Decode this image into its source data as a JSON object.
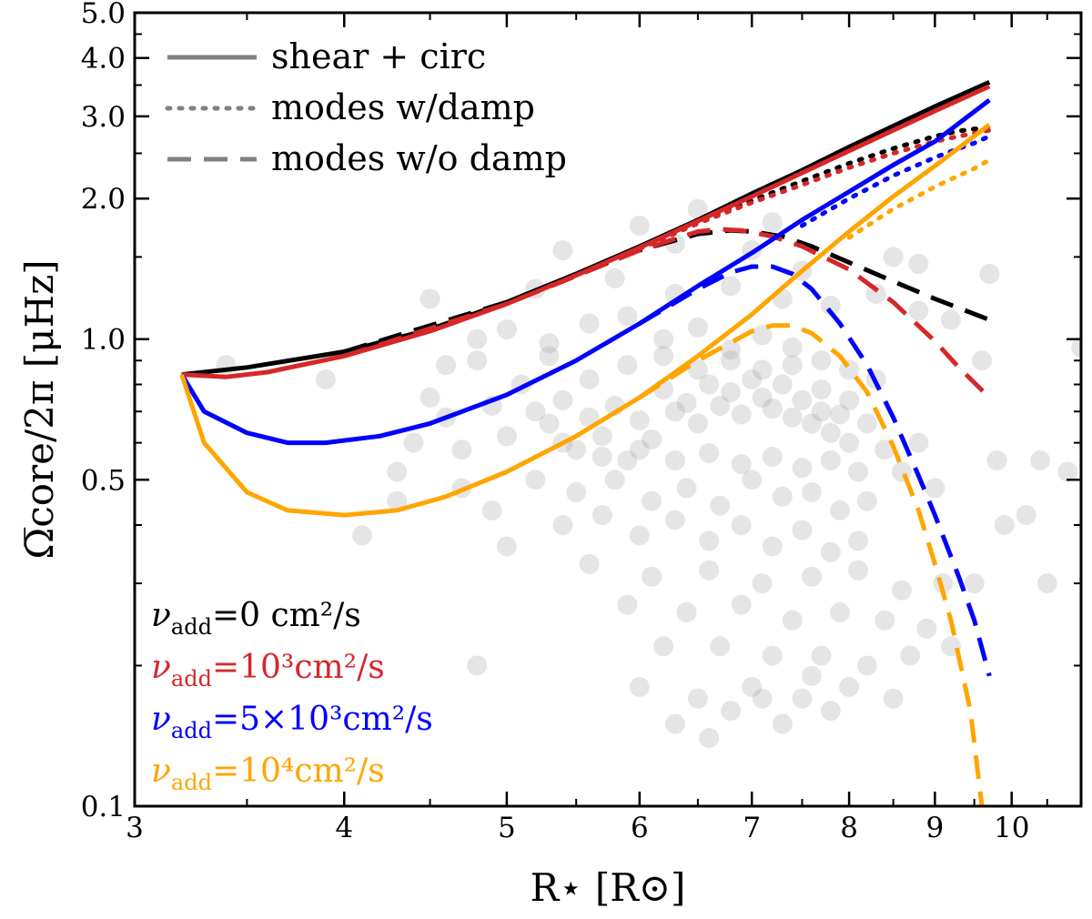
{
  "chart_data": {
    "type": "line",
    "title": "",
    "xlabel": "R⋆ [R⊙]",
    "ylabel": "Ω̅core/2π [μHz]",
    "xscale": "log",
    "yscale": "log",
    "xlim": [
      3.0,
      11.0
    ],
    "ylim": [
      0.1,
      5.0
    ],
    "xticks": [
      3,
      4,
      5,
      6,
      7,
      8,
      9,
      10
    ],
    "xtick_labels": [
      "3",
      "4",
      "5",
      "6",
      "7",
      "8",
      "9",
      "10"
    ],
    "yticks": [
      0.1,
      0.5,
      1.0,
      2.0,
      3.0,
      4.0,
      5.0
    ],
    "ytick_labels": [
      "0.1",
      "0.5",
      "1.0",
      "2.0",
      "3.0",
      "4.0",
      "5.0"
    ],
    "grid": false,
    "legend_style": {
      "position": "top-left",
      "entries": [
        {
          "label": "shear + circ",
          "dash": "solid"
        },
        {
          "label": "modes w/damp",
          "dash": "dotted"
        },
        {
          "label": "modes w/o damp",
          "dash": "dashed"
        }
      ]
    },
    "legend_models": {
      "position": "bottom-left",
      "entries": [
        {
          "prefix": "ν",
          "sub": "add",
          "text": "=0 cm²/s",
          "color": "#000000"
        },
        {
          "prefix": "ν",
          "sub": "add",
          "text": "=10³cm²/s",
          "color": "#d62728"
        },
        {
          "prefix": "ν",
          "sub": "add",
          "text": "=5×10³cm²/s",
          "color": "#0000ff"
        },
        {
          "prefix": "ν",
          "sub": "add",
          "text": "=10⁴cm²/s",
          "color": "#ffa500"
        }
      ]
    },
    "series": [
      {
        "color": "#000000",
        "dash": "solid",
        "x": [
          3.2,
          3.5,
          4.0,
          4.5,
          5.0,
          5.5,
          6.0,
          6.5,
          7.0,
          7.5,
          8.0,
          8.5,
          9.0,
          9.7
        ],
        "y": [
          0.84,
          0.87,
          0.94,
          1.05,
          1.2,
          1.38,
          1.58,
          1.8,
          2.05,
          2.3,
          2.58,
          2.86,
          3.15,
          3.55
        ]
      },
      {
        "color": "#000000",
        "dash": "dotted",
        "x": [
          6.0,
          6.5,
          7.0,
          7.5,
          8.0,
          8.5,
          9.0,
          9.3,
          9.5,
          9.7
        ],
        "y": [
          1.57,
          1.78,
          1.98,
          2.18,
          2.38,
          2.56,
          2.72,
          2.79,
          2.82,
          2.84
        ]
      },
      {
        "color": "#000000",
        "dash": "dashed",
        "x": [
          4.0,
          5.0,
          6.0,
          6.5,
          6.8,
          7.0,
          7.3,
          7.6,
          8.0,
          8.5,
          9.0,
          9.7
        ],
        "y": [
          0.94,
          1.2,
          1.55,
          1.68,
          1.71,
          1.7,
          1.66,
          1.58,
          1.46,
          1.33,
          1.22,
          1.1
        ]
      },
      {
        "color": "#d62728",
        "dash": "solid",
        "x": [
          3.2,
          3.4,
          3.6,
          4.0,
          4.5,
          5.0,
          5.5,
          6.0,
          6.5,
          7.0,
          7.5,
          8.0,
          8.5,
          9.0,
          9.7
        ],
        "y": [
          0.84,
          0.83,
          0.85,
          0.92,
          1.04,
          1.19,
          1.37,
          1.57,
          1.79,
          2.02,
          2.27,
          2.53,
          2.8,
          3.08,
          3.48
        ]
      },
      {
        "color": "#d62728",
        "dash": "dotted",
        "x": [
          6.0,
          6.5,
          7.0,
          7.5,
          8.0,
          8.5,
          9.0,
          9.3,
          9.5,
          9.7
        ],
        "y": [
          1.56,
          1.77,
          1.96,
          2.14,
          2.33,
          2.5,
          2.65,
          2.72,
          2.76,
          2.8
        ]
      },
      {
        "color": "#d62728",
        "dash": "dashed",
        "x": [
          4.0,
          5.0,
          6.0,
          6.5,
          6.7,
          6.9,
          7.2,
          7.5,
          8.0,
          8.5,
          9.0,
          9.3,
          9.7
        ],
        "y": [
          0.92,
          1.19,
          1.55,
          1.7,
          1.72,
          1.71,
          1.66,
          1.58,
          1.41,
          1.2,
          0.99,
          0.87,
          0.75
        ]
      },
      {
        "color": "#0000ff",
        "dash": "solid",
        "x": [
          3.2,
          3.3,
          3.5,
          3.7,
          3.9,
          4.2,
          4.5,
          5.0,
          5.5,
          6.0,
          6.5,
          7.0,
          7.5,
          8.0,
          8.5,
          9.0,
          9.7
        ],
        "y": [
          0.84,
          0.7,
          0.63,
          0.6,
          0.6,
          0.62,
          0.66,
          0.76,
          0.9,
          1.08,
          1.3,
          1.53,
          1.8,
          2.07,
          2.36,
          2.65,
          3.25
        ]
      },
      {
        "color": "#0000ff",
        "dash": "dotted",
        "x": [
          7.5,
          8.0,
          8.5,
          9.0,
          9.3,
          9.5,
          9.7
        ],
        "y": [
          1.75,
          2.0,
          2.24,
          2.45,
          2.56,
          2.63,
          2.72
        ]
      },
      {
        "color": "#0000ff",
        "dash": "dashed",
        "x": [
          6.0,
          6.5,
          6.8,
          7.0,
          7.2,
          7.4,
          7.6,
          7.9,
          8.2,
          8.5,
          8.8,
          9.0,
          9.3,
          9.5,
          9.7
        ],
        "y": [
          1.08,
          1.28,
          1.39,
          1.43,
          1.43,
          1.38,
          1.28,
          1.08,
          0.88,
          0.68,
          0.51,
          0.42,
          0.31,
          0.25,
          0.19
        ]
      },
      {
        "color": "#ffa500",
        "dash": "solid",
        "x": [
          3.2,
          3.3,
          3.5,
          3.7,
          4.0,
          4.3,
          4.6,
          5.0,
          5.5,
          6.0,
          6.5,
          7.0,
          7.5,
          8.0,
          8.5,
          9.0,
          9.7
        ],
        "y": [
          0.84,
          0.6,
          0.47,
          0.43,
          0.42,
          0.43,
          0.46,
          0.52,
          0.62,
          0.75,
          0.92,
          1.13,
          1.4,
          1.7,
          2.02,
          2.35,
          2.88
        ]
      },
      {
        "color": "#ffa500",
        "dash": "dotted",
        "x": [
          8.0,
          8.5,
          9.0,
          9.3,
          9.5,
          9.7
        ],
        "y": [
          1.65,
          1.9,
          2.12,
          2.24,
          2.32,
          2.42
        ]
      },
      {
        "color": "#ffa500",
        "dash": "dashed",
        "x": [
          6.0,
          6.5,
          7.0,
          7.2,
          7.4,
          7.6,
          7.9,
          8.2,
          8.5,
          8.8,
          9.0,
          9.2,
          9.45,
          9.6
        ],
        "y": [
          0.75,
          0.9,
          1.04,
          1.07,
          1.07,
          1.03,
          0.92,
          0.77,
          0.59,
          0.43,
          0.33,
          0.25,
          0.16,
          0.1
        ]
      }
    ],
    "scatter": {
      "color": "#999999",
      "opacity": 0.25,
      "points": [
        [
          3.4,
          0.88
        ],
        [
          3.9,
          0.82
        ],
        [
          4.3,
          0.52
        ],
        [
          4.4,
          0.6
        ],
        [
          4.5,
          0.75
        ],
        [
          4.6,
          0.68
        ],
        [
          4.7,
          0.58
        ],
        [
          4.8,
          0.9
        ],
        [
          4.9,
          0.72
        ],
        [
          5.0,
          0.62
        ],
        [
          5.1,
          0.8
        ],
        [
          5.2,
          0.7
        ],
        [
          5.3,
          0.66
        ],
        [
          5.4,
          0.74
        ],
        [
          5.5,
          0.58
        ],
        [
          5.6,
          0.68
        ],
        [
          5.7,
          0.62
        ],
        [
          5.8,
          0.72
        ],
        [
          5.9,
          0.55
        ],
        [
          6.0,
          0.67
        ],
        [
          6.1,
          0.61
        ],
        [
          6.2,
          0.78
        ],
        [
          6.3,
          0.7
        ],
        [
          6.4,
          0.73
        ],
        [
          6.5,
          0.66
        ],
        [
          6.6,
          0.8
        ],
        [
          6.7,
          0.72
        ],
        [
          6.8,
          0.77
        ],
        [
          6.9,
          0.69
        ],
        [
          7.0,
          0.82
        ],
        [
          7.1,
          0.75
        ],
        [
          7.2,
          0.71
        ],
        [
          7.3,
          0.8
        ],
        [
          7.4,
          0.68
        ],
        [
          7.5,
          0.74
        ],
        [
          7.6,
          0.66
        ],
        [
          7.7,
          0.7
        ],
        [
          7.8,
          0.63
        ],
        [
          7.9,
          0.69
        ],
        [
          8.0,
          0.6
        ],
        [
          8.2,
          0.66
        ],
        [
          8.4,
          0.58
        ],
        [
          8.6,
          0.52
        ],
        [
          8.8,
          0.6
        ],
        [
          9.0,
          0.48
        ],
        [
          4.6,
          0.88
        ],
        [
          4.8,
          1.0
        ],
        [
          5.0,
          1.05
        ],
        [
          5.3,
          0.98
        ],
        [
          5.6,
          1.08
        ],
        [
          5.9,
          1.12
        ],
        [
          6.2,
          1.0
        ],
        [
          6.5,
          1.06
        ],
        [
          6.8,
          0.95
        ],
        [
          7.1,
          1.02
        ],
        [
          7.4,
          0.96
        ],
        [
          7.7,
          0.9
        ],
        [
          8.0,
          0.86
        ],
        [
          8.3,
          0.82
        ],
        [
          5.2,
          0.5
        ],
        [
          5.5,
          0.47
        ],
        [
          5.8,
          0.5
        ],
        [
          6.1,
          0.45
        ],
        [
          6.4,
          0.48
        ],
        [
          6.7,
          0.44
        ],
        [
          7.0,
          0.5
        ],
        [
          7.3,
          0.46
        ],
        [
          7.6,
          0.47
        ],
        [
          7.9,
          0.43
        ],
        [
          8.2,
          0.45
        ],
        [
          5.4,
          0.4
        ],
        [
          5.7,
          0.42
        ],
        [
          6.0,
          0.38
        ],
        [
          6.3,
          0.41
        ],
        [
          6.6,
          0.37
        ],
        [
          6.9,
          0.4
        ],
        [
          7.2,
          0.36
        ],
        [
          7.5,
          0.39
        ],
        [
          7.8,
          0.35
        ],
        [
          8.1,
          0.37
        ],
        [
          4.5,
          1.22
        ],
        [
          5.2,
          1.28
        ],
        [
          5.8,
          1.35
        ],
        [
          6.3,
          1.25
        ],
        [
          6.8,
          1.3
        ],
        [
          7.3,
          1.22
        ],
        [
          7.8,
          1.18
        ],
        [
          8.3,
          1.25
        ],
        [
          8.8,
          1.15
        ],
        [
          9.2,
          1.1
        ],
        [
          5.4,
          1.55
        ],
        [
          6.3,
          1.6
        ],
        [
          7.0,
          1.55
        ],
        [
          7.5,
          1.4
        ],
        [
          8.8,
          1.45
        ],
        [
          9.7,
          1.38
        ],
        [
          6.0,
          1.75
        ],
        [
          6.5,
          1.9
        ],
        [
          7.2,
          1.78
        ],
        [
          8.5,
          1.5
        ],
        [
          5.6,
          0.33
        ],
        [
          6.1,
          0.31
        ],
        [
          6.6,
          0.32
        ],
        [
          7.1,
          0.3
        ],
        [
          7.6,
          0.31
        ],
        [
          8.1,
          0.32
        ],
        [
          8.6,
          0.29
        ],
        [
          9.1,
          0.3
        ],
        [
          5.9,
          0.27
        ],
        [
          6.4,
          0.26
        ],
        [
          6.9,
          0.27
        ],
        [
          7.4,
          0.25
        ],
        [
          7.9,
          0.26
        ],
        [
          8.4,
          0.25
        ],
        [
          8.9,
          0.24
        ],
        [
          6.2,
          0.22
        ],
        [
          6.7,
          0.22
        ],
        [
          7.2,
          0.21
        ],
        [
          7.7,
          0.21
        ],
        [
          8.2,
          0.2
        ],
        [
          8.7,
          0.21
        ],
        [
          9.2,
          0.22
        ],
        [
          6.0,
          0.18
        ],
        [
          6.5,
          0.17
        ],
        [
          7.0,
          0.18
        ],
        [
          7.5,
          0.17
        ],
        [
          8.0,
          0.18
        ],
        [
          8.5,
          0.17
        ],
        [
          6.3,
          0.15
        ],
        [
          6.8,
          0.16
        ],
        [
          7.3,
          0.15
        ],
        [
          7.8,
          0.16
        ],
        [
          4.8,
          0.2
        ],
        [
          6.6,
          0.14
        ],
        [
          7.1,
          0.17
        ],
        [
          7.6,
          0.19
        ],
        [
          9.5,
          0.3
        ],
        [
          9.9,
          0.4
        ],
        [
          10.5,
          0.3
        ],
        [
          10.8,
          0.52
        ],
        [
          11.0,
          0.96
        ],
        [
          10.2,
          0.42
        ],
        [
          9.6,
          0.9
        ],
        [
          9.8,
          0.55
        ],
        [
          10.4,
          0.55
        ],
        [
          4.1,
          0.38
        ],
        [
          4.3,
          0.45
        ],
        [
          4.7,
          0.48
        ],
        [
          4.9,
          0.43
        ],
        [
          5.0,
          0.36
        ],
        [
          5.3,
          0.92
        ],
        [
          5.6,
          0.82
        ],
        [
          5.9,
          0.88
        ],
        [
          6.2,
          0.92
        ],
        [
          6.5,
          0.86
        ],
        [
          6.8,
          0.9
        ],
        [
          7.1,
          0.86
        ],
        [
          7.4,
          0.88
        ],
        [
          7.7,
          0.78
        ],
        [
          8.0,
          0.74
        ],
        [
          5.4,
          0.6
        ],
        [
          5.7,
          0.56
        ],
        [
          6.0,
          0.58
        ],
        [
          6.3,
          0.55
        ],
        [
          6.6,
          0.57
        ],
        [
          6.9,
          0.54
        ],
        [
          7.2,
          0.56
        ],
        [
          7.5,
          0.53
        ],
        [
          7.8,
          0.55
        ],
        [
          8.1,
          0.52
        ]
      ]
    }
  }
}
